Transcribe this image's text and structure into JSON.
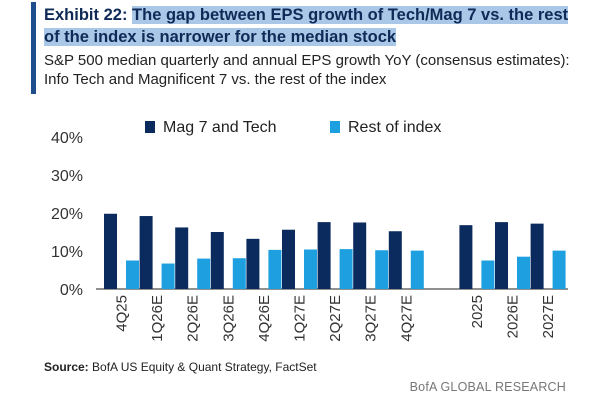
{
  "header": {
    "exhibit_label": "Exhibit 22:",
    "title": "The gap between EPS growth of Tech/Mag 7 vs. the rest of the index is narrower for the median stock",
    "subtitle": "S&P 500 median quarterly and annual EPS growth YoY (consensus estimates): Info Tech and Magnificent 7 vs. the rest of the index"
  },
  "footer": {
    "source_label": "Source:",
    "source_text": "BofA US Equity & Quant Strategy, FactSet",
    "brand": "BofA GLOBAL RESEARCH"
  },
  "colors": {
    "series_dark": "#0b2a5e",
    "series_light": "#1ea0e0",
    "title_highlight": "#a9c7e6",
    "accent": "#1f4e8c"
  },
  "chart_data": {
    "type": "bar",
    "categories": [
      "4Q25",
      "1Q26E",
      "2Q26E",
      "3Q26E",
      "4Q26E",
      "1Q27E",
      "2Q27E",
      "3Q27E",
      "4Q27E",
      "2025",
      "2026E",
      "2027E"
    ],
    "series": [
      {
        "name": "Mag 7 and Tech",
        "values": [
          19.8,
          19.2,
          16.2,
          15.0,
          13.2,
          15.6,
          17.6,
          17.5,
          15.2,
          16.8,
          17.6,
          17.2
        ]
      },
      {
        "name": "Rest of index",
        "values": [
          7.5,
          6.7,
          8.0,
          8.1,
          10.3,
          10.4,
          10.5,
          10.2,
          10.1,
          7.5,
          8.5,
          10.1
        ]
      }
    ],
    "ylim": [
      0,
      40
    ],
    "yticks": [
      "0%",
      "10%",
      "20%",
      "30%",
      "40%"
    ],
    "legend_position": "top",
    "grid": false
  }
}
